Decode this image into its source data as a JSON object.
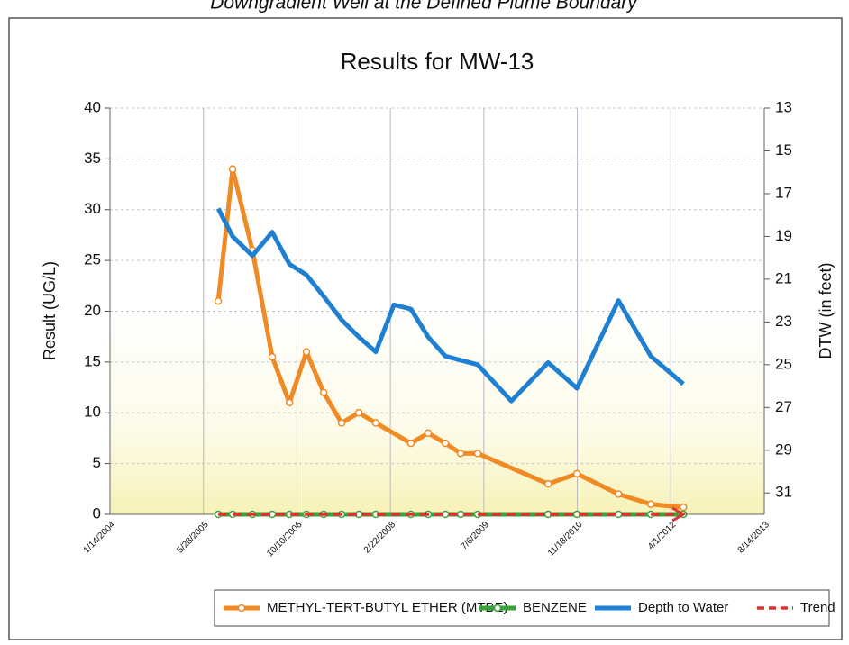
{
  "chart_data": {
    "type": "line",
    "caption": "Downgradient Well at the Defined Plume Boundary",
    "title": "Results for MW-13",
    "ylabel": "Result (UG/L)",
    "y2label": "DTW (in feet)",
    "xlim": [
      "2004-01-14",
      "2013-08-14"
    ],
    "xticks": [
      {
        "value": "2004-01-14",
        "label": "1/14/2004"
      },
      {
        "value": "2005-05-28",
        "label": "5/28/2005"
      },
      {
        "value": "2006-10-10",
        "label": "10/10/2006"
      },
      {
        "value": "2008-02-22",
        "label": "2/22/2008"
      },
      {
        "value": "2009-07-06",
        "label": "7/6/2009"
      },
      {
        "value": "2010-11-18",
        "label": "11/18/2010"
      },
      {
        "value": "2012-04-01",
        "label": "4/1/2012"
      },
      {
        "value": "2013-08-14",
        "label": "8/14/2013"
      }
    ],
    "ylim": [
      0,
      40
    ],
    "yticks": [
      0,
      5,
      10,
      15,
      20,
      25,
      30,
      35,
      40
    ],
    "y2lim": [
      32,
      13
    ],
    "y2ticks": [
      13,
      15,
      17,
      19,
      21,
      23,
      25,
      27,
      29,
      31
    ],
    "grid": true,
    "legend": "bottom",
    "series": [
      {
        "name": "METHYL-TERT-BUTYL ETHER (MTBE)",
        "color": "#f08a24",
        "markers": true,
        "x": [
          "2005-08-15",
          "2005-10-31",
          "2006-02-14",
          "2006-05-31",
          "2006-08-31",
          "2006-11-30",
          "2007-03-02",
          "2007-06-06",
          "2007-09-06",
          "2007-12-06",
          "2008-06-11",
          "2008-09-11",
          "2008-12-12",
          "2009-03-04",
          "2009-06-03",
          "2010-06-15",
          "2010-11-16",
          "2011-06-26",
          "2011-12-16",
          "2012-06-07"
        ],
        "values": [
          21,
          34,
          26,
          15.5,
          11,
          16,
          12,
          9,
          10,
          9,
          7,
          8,
          7,
          6,
          6,
          3,
          4,
          2,
          1,
          0.7
        ]
      },
      {
        "name": "BENZENE",
        "color": "#3aa23a",
        "markers": true,
        "x": [
          "2005-08-15",
          "2005-10-31",
          "2006-02-14",
          "2006-05-31",
          "2006-08-31",
          "2006-11-30",
          "2007-03-02",
          "2007-06-06",
          "2007-09-06",
          "2007-12-06",
          "2008-06-11",
          "2008-09-11",
          "2008-12-12",
          "2009-03-04",
          "2009-06-03",
          "2010-06-15",
          "2010-11-16",
          "2011-06-26",
          "2011-12-16",
          "2012-06-07"
        ],
        "values": [
          0,
          0,
          0,
          0,
          0,
          0,
          0,
          0,
          0,
          0,
          0,
          0,
          0,
          0,
          0,
          0,
          0,
          0,
          0,
          0
        ]
      },
      {
        "name": "Depth to Water",
        "color": "#1f7fd0",
        "axis": "y2",
        "markers": false,
        "x": [
          "2005-08-15",
          "2005-10-31",
          "2006-02-14",
          "2006-05-31",
          "2006-08-31",
          "2006-11-30",
          "2007-03-02",
          "2007-06-06",
          "2007-09-06",
          "2007-12-06",
          "2008-03-12",
          "2008-06-11",
          "2008-09-11",
          "2008-12-12",
          "2009-06-03",
          "2009-11-30",
          "2010-06-15",
          "2010-11-16",
          "2011-06-26",
          "2011-12-16",
          "2012-06-07"
        ],
        "values": [
          17.7,
          19,
          19.9,
          18.8,
          20.3,
          20.8,
          21.8,
          22.9,
          23.7,
          24.4,
          22.2,
          22.4,
          23.7,
          24.6,
          25,
          26.7,
          24.9,
          26.1,
          22,
          24.6,
          25.9
        ]
      },
      {
        "name": "Trend",
        "color": "#e03030",
        "dashed": true,
        "markers": false,
        "x": [
          "2005-08-15",
          "2012-06-07"
        ],
        "values": [
          0,
          0
        ]
      }
    ]
  }
}
